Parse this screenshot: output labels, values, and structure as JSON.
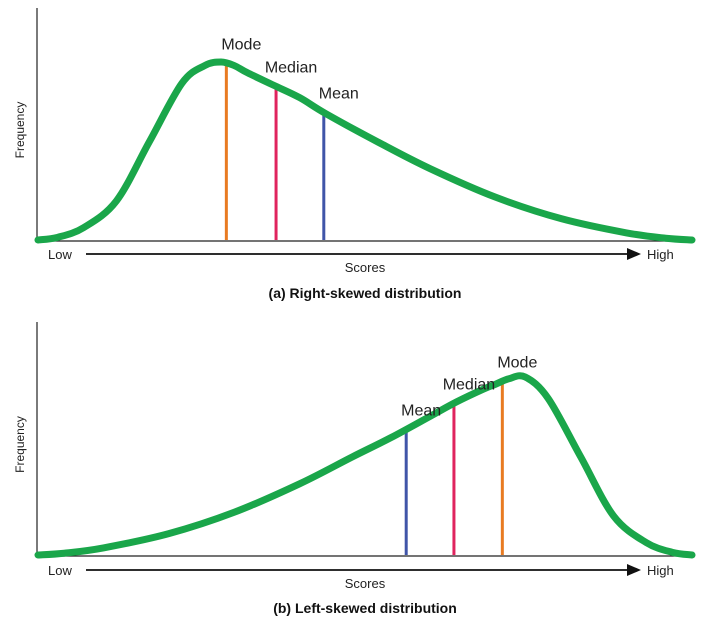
{
  "chart_data": [
    {
      "type": "line",
      "title": "(a) Right-skewed distribution",
      "xlabel": "Scores",
      "ylabel": "Frequency",
      "x_low_label": "Low",
      "x_high_label": "High",
      "curve": {
        "x": [
          0,
          0.03,
          0.07,
          0.12,
          0.17,
          0.22,
          0.255,
          0.28,
          0.3,
          0.32,
          0.36,
          0.4,
          0.44,
          0.52,
          0.6,
          0.7,
          0.8,
          0.9,
          0.96,
          1.0
        ],
        "y": [
          0,
          0.015,
          0.07,
          0.22,
          0.55,
          0.88,
          0.98,
          1.0,
          0.98,
          0.94,
          0.87,
          0.8,
          0.71,
          0.55,
          0.4,
          0.24,
          0.12,
          0.04,
          0.01,
          0
        ]
      },
      "markers": [
        {
          "label": "Mode",
          "x": 0.288,
          "color": "#e87b22"
        },
        {
          "label": "Median",
          "x": 0.364,
          "color": "#e0245e"
        },
        {
          "label": "Mean",
          "x": 0.437,
          "color": "#4055a8"
        }
      ],
      "curve_color": "#1aa64a"
    },
    {
      "type": "line",
      "title": "(b) Left-skewed distribution",
      "xlabel": "Scores",
      "ylabel": "Frequency",
      "x_low_label": "Low",
      "x_high_label": "High",
      "curve": {
        "x": [
          0,
          0.04,
          0.1,
          0.2,
          0.3,
          0.4,
          0.48,
          0.54,
          0.6,
          0.64,
          0.68,
          0.7,
          0.72,
          0.745,
          0.78,
          0.83,
          0.88,
          0.93,
          0.97,
          1.0
        ],
        "y": [
          0,
          0.01,
          0.04,
          0.12,
          0.24,
          0.4,
          0.55,
          0.66,
          0.78,
          0.86,
          0.93,
          0.96,
          0.99,
          1.0,
          0.88,
          0.55,
          0.22,
          0.07,
          0.015,
          0
        ]
      },
      "markers": [
        {
          "label": "Mean",
          "x": 0.563,
          "color": "#4055a8"
        },
        {
          "label": "Median",
          "x": 0.636,
          "color": "#e0245e"
        },
        {
          "label": "Mode",
          "x": 0.71,
          "color": "#e87b22"
        }
      ],
      "curve_color": "#1aa64a"
    }
  ]
}
